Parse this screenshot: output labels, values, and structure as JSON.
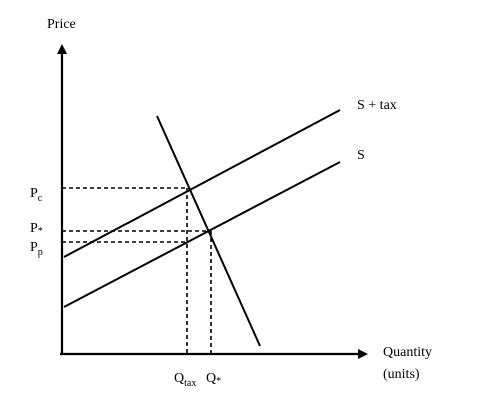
{
  "axes": {
    "y_label": "Price",
    "x_label_line1": "Quantity",
    "x_label_line2": "(units)"
  },
  "price_labels": {
    "pc_base": "P",
    "pc_sub": "c",
    "pstar_base": "P",
    "pstar_mark": "*",
    "pp_base": "P",
    "pp_sub": "p"
  },
  "quantity_labels": {
    "qtax_base": "Q",
    "qtax_sub": "tax",
    "qstar_base": "Q",
    "qstar_mark": "*"
  },
  "curves": {
    "supply_tax": "S + tax",
    "supply": "S"
  },
  "colors": {
    "ink": "#000000",
    "background": "#ffffff"
  }
}
